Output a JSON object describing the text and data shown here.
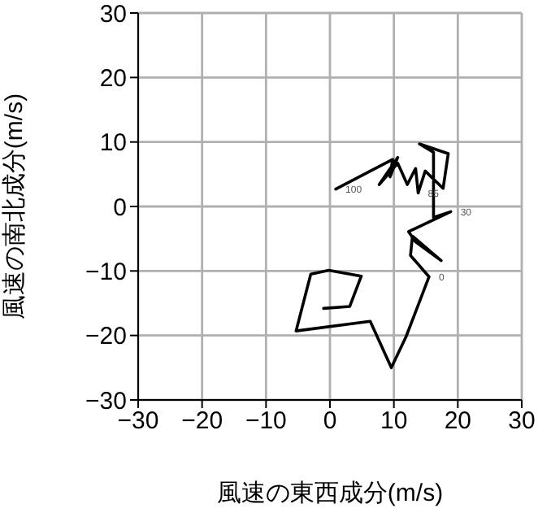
{
  "chart_data": {
    "type": "line",
    "xlabel": "風速の東西成分(m/s)",
    "ylabel": "風速の南北成分(m/s)",
    "xlim": [
      -30,
      30
    ],
    "xticks": [
      -30,
      -20,
      -10,
      0,
      10,
      20,
      30
    ],
    "ylim": [
      -30,
      30
    ],
    "yticks": [
      -30,
      -20,
      -10,
      0,
      10,
      20,
      30
    ],
    "grid": true,
    "marker": "none",
    "line_style": "solid",
    "series": [
      {
        "color": "#000000",
        "x": [
          -1.0,
          3.1,
          4.9,
          -0.2,
          -3.0,
          -5.3,
          6.3,
          9.6,
          11.9,
          15.5,
          12.6,
          12.9,
          17.4,
          13.4,
          12.3,
          18.9,
          16.2,
          16.2,
          14.0,
          18.5,
          17.7,
          14.9,
          13.8,
          13.4,
          12.1,
          10.6,
          7.7,
          10.6,
          9.4,
          9.8,
          0.9
        ],
        "values": [
          -15.8,
          -15.5,
          -10.8,
          -9.9,
          -10.5,
          -19.3,
          -17.8,
          -25.0,
          -20.2,
          -10.9,
          -7.6,
          -4.6,
          -8.4,
          -5.5,
          -3.9,
          -0.8,
          -1.7,
          8.4,
          9.7,
          8.2,
          2.8,
          5.5,
          2.1,
          5.9,
          3.4,
          6.7,
          3.4,
          7.6,
          4.6,
          7.3,
          2.7
        ]
      }
    ],
    "annotations": [
      {
        "text": "100",
        "x": 0.9,
        "y": 2.7
      },
      {
        "text": "85",
        "x": 13.8,
        "y": 2.1
      },
      {
        "text": "30",
        "x": 18.9,
        "y": -0.8
      },
      {
        "text": "0",
        "x": 15.5,
        "y": -10.9
      }
    ]
  }
}
